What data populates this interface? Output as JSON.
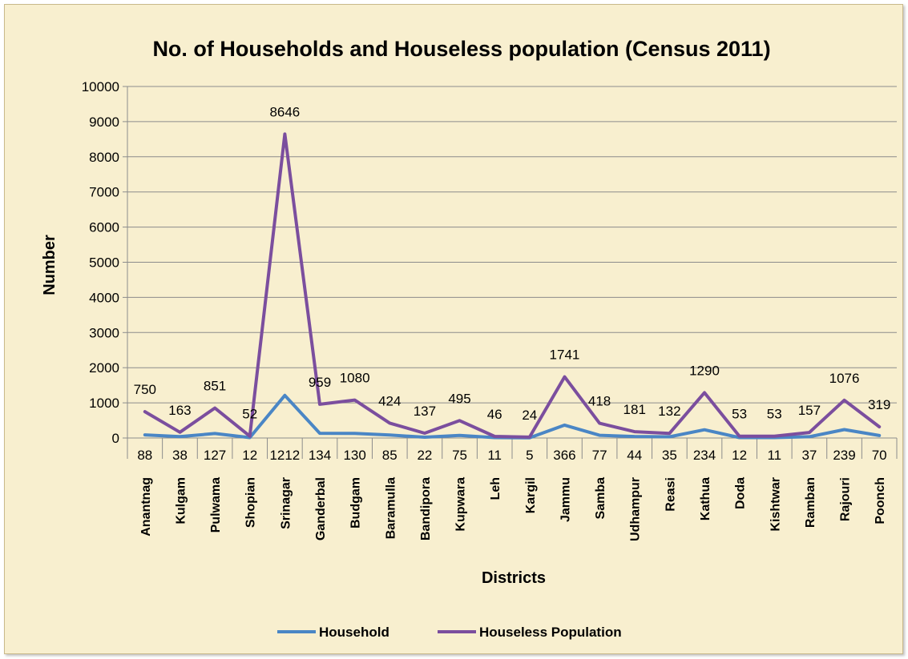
{
  "chart_data": {
    "type": "line",
    "title": "No. of Households and Houseless population (Census 2011)",
    "xlabel": "Districts",
    "ylabel": "Number",
    "ylim": [
      0,
      10000
    ],
    "yticks": [
      "0",
      "1000",
      "2000",
      "3000",
      "4000",
      "5000",
      "6000",
      "7000",
      "8000",
      "9000",
      "10000"
    ],
    "grid": "horizontal",
    "legend_position": "bottom",
    "categories": [
      "Anantnag",
      "Kulgam",
      "Pulwama",
      "Shopian",
      "Srinagar",
      "Ganderbal",
      "Budgam",
      "Baramulla",
      "Bandipora",
      "Kupwara",
      "Leh",
      "Kargil",
      "Jammu",
      "Samba",
      "Udhampur",
      "Reasi",
      "Kathua",
      "Doda",
      "Kishtwar",
      "Ramban",
      "Rajouri",
      "Poonch"
    ],
    "series": [
      {
        "name": "Household",
        "color": "#4a86c5",
        "values": [
          88,
          38,
          127,
          12,
          1212,
          134,
          130,
          85,
          22,
          75,
          11,
          5,
          366,
          77,
          44,
          35,
          234,
          12,
          11,
          37,
          239,
          70
        ]
      },
      {
        "name": "Houseless Population",
        "color": "#7b4e9e",
        "values": [
          750,
          163,
          851,
          52,
          8646,
          959,
          1080,
          424,
          137,
          495,
          46,
          24,
          1741,
          418,
          181,
          132,
          1290,
          53,
          53,
          157,
          1076,
          319
        ]
      }
    ]
  }
}
